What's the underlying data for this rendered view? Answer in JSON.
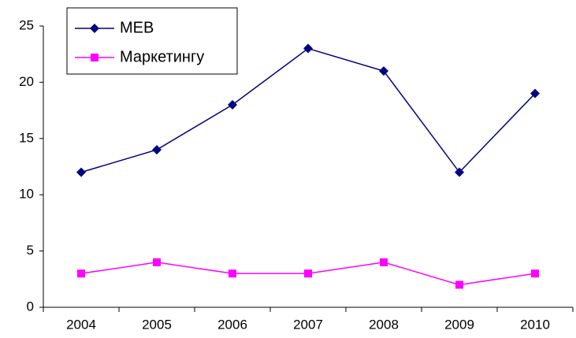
{
  "chart_data": {
    "type": "line",
    "categories": [
      "2004",
      "2005",
      "2006",
      "2007",
      "2008",
      "2009",
      "2010"
    ],
    "series": [
      {
        "name": "МЕВ",
        "color": "#000080",
        "marker": "diamond",
        "values": [
          12,
          14,
          18,
          23,
          21,
          12,
          19
        ]
      },
      {
        "name": "Маркетингу",
        "color": "#ff00ff",
        "marker": "square",
        "values": [
          3,
          4,
          3,
          3,
          4,
          2,
          3
        ]
      }
    ],
    "ylim": [
      0,
      25
    ],
    "yticks": [
      0,
      5,
      10,
      15,
      20,
      25
    ],
    "grid": false,
    "legend": "top-left"
  }
}
